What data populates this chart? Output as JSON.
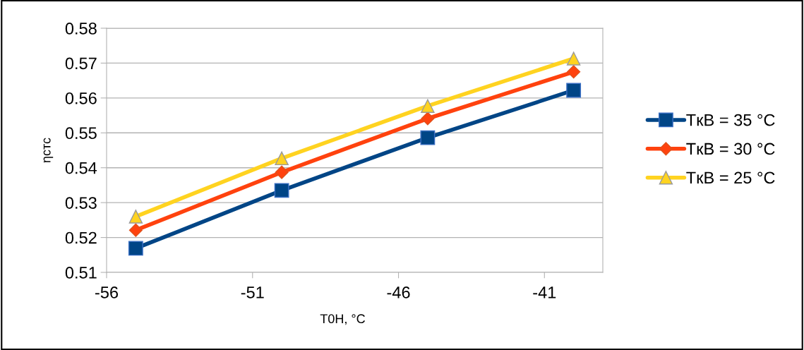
{
  "chart_data": {
    "type": "line",
    "xlabel": "T0Н, °C",
    "ylabel": "ηстс",
    "x": [
      -55,
      -50,
      -45,
      -40
    ],
    "series": [
      {
        "name": "TкВ = 35 °C",
        "color": "#004586",
        "marker": "square",
        "values": [
          0.5169,
          0.5335,
          0.5486,
          0.5622
        ]
      },
      {
        "name": "TкВ = 30 °C",
        "color": "#ff420e",
        "marker": "diamond",
        "values": [
          0.5221,
          0.5387,
          0.5541,
          0.5675
        ]
      },
      {
        "name": "TкВ = 25 °C",
        "color": "#ffd320",
        "marker": "triangle",
        "values": [
          0.526,
          0.5427,
          0.5577,
          0.5713
        ]
      }
    ],
    "xlim": [
      -56,
      -39
    ],
    "xticks": [
      -56,
      -51,
      -46,
      -41
    ],
    "ylim": [
      0.51,
      0.58
    ],
    "yticks": [
      {
        "value": 0.51,
        "label": "0.51"
      },
      {
        "value": 0.52,
        "label": "0.52"
      },
      {
        "value": 0.53,
        "label": "0.53"
      },
      {
        "value": 0.54,
        "label": "0.54"
      },
      {
        "value": 0.55,
        "label": "0.55"
      },
      {
        "value": 0.56,
        "label": "0.56"
      },
      {
        "value": 0.57,
        "label": "0.57"
      },
      {
        "value": 0.58,
        "label": "0.58"
      }
    ],
    "grid": "y",
    "legend": "right",
    "line_style": "solid"
  }
}
